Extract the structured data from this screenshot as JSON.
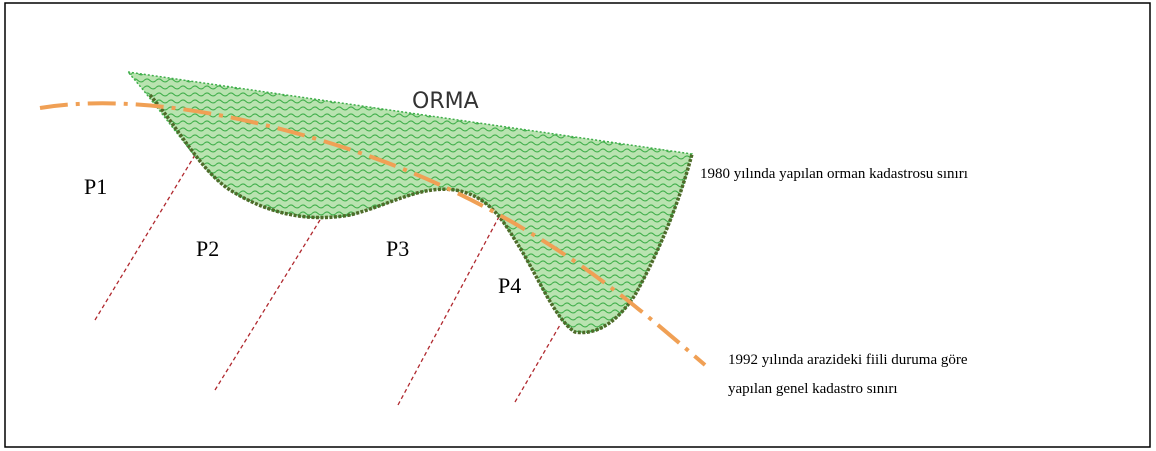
{
  "forest_label": "ORMA",
  "parcels": [
    "P1",
    "P2",
    "P3",
    "P4"
  ],
  "annotations": {
    "boundary_1980": "1980 yılında yapılan orman kadastrosu sınırı",
    "boundary_1992": [
      "1992 yılında arazideki fiili duruma göre",
      "yapılan genel kadastro sınırı"
    ]
  }
}
